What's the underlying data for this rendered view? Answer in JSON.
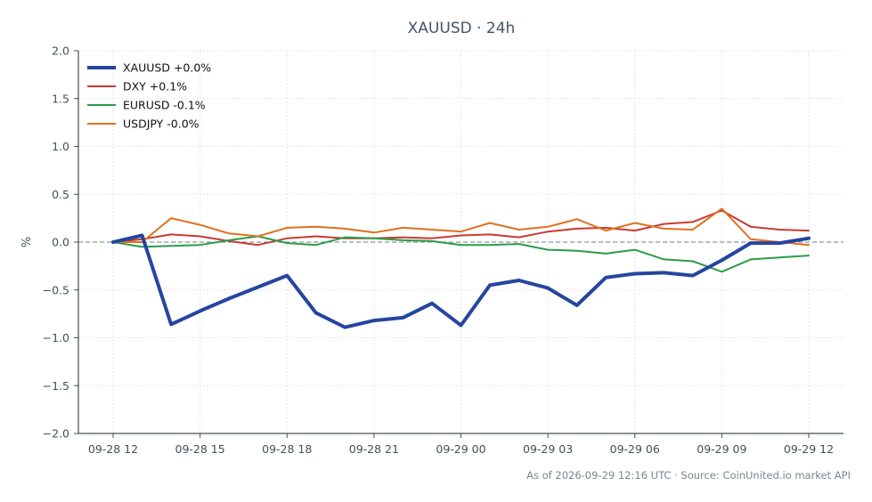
{
  "chart_data": {
    "type": "line",
    "title": "XAUUSD · 24h",
    "xlabel": "",
    "ylabel": "%",
    "ylim": [
      -2.0,
      2.0
    ],
    "yticks": [
      "2.0",
      "1.5",
      "1.0",
      "0.5",
      "0.0",
      "−0.5",
      "−1.0",
      "−1.5",
      "−2.0"
    ],
    "ytick_values": [
      2.0,
      1.5,
      1.0,
      0.5,
      0.0,
      -0.5,
      -1.0,
      -1.5,
      -2.0
    ],
    "xticks": [
      "09-28 12",
      "09-28 15",
      "09-28 18",
      "09-28 21",
      "09-29 00",
      "09-29 03",
      "09-29 06",
      "09-29 09",
      "09-29 12"
    ],
    "x": [
      "09-28 12",
      "09-28 13",
      "09-28 14",
      "09-28 15",
      "09-28 16",
      "09-28 17",
      "09-28 18",
      "09-28 19",
      "09-28 20",
      "09-28 21",
      "09-28 22",
      "09-28 23",
      "09-29 00",
      "09-29 01",
      "09-29 02",
      "09-29 03",
      "09-29 04",
      "09-29 05",
      "09-29 06",
      "09-29 07",
      "09-29 08",
      "09-29 09",
      "09-29 10",
      "09-29 11",
      "09-29 12"
    ],
    "grid": true,
    "zero_line": true,
    "legend_position": "top-left",
    "series": [
      {
        "name": "XAUUSD +0.0%",
        "color": "#2545a0",
        "width": 4,
        "values": [
          0.0,
          0.07,
          -0.86,
          -0.72,
          -0.59,
          -0.47,
          -0.35,
          -0.74,
          -0.89,
          -0.82,
          -0.79,
          -0.64,
          -0.87,
          -0.45,
          -0.4,
          -0.48,
          -0.66,
          -0.37,
          -0.33,
          -0.32,
          -0.35,
          -0.19,
          -0.01,
          -0.01,
          0.04
        ]
      },
      {
        "name": "DXY +0.1%",
        "color": "#c93a32",
        "width": 2,
        "values": [
          0.0,
          0.03,
          0.08,
          0.06,
          0.01,
          -0.03,
          0.04,
          0.06,
          0.04,
          0.04,
          0.05,
          0.04,
          0.07,
          0.08,
          0.05,
          0.11,
          0.14,
          0.15,
          0.12,
          0.19,
          0.21,
          0.33,
          0.16,
          0.13,
          0.12
        ]
      },
      {
        "name": "EURUSD -0.1%",
        "color": "#2a9c4a",
        "width": 2,
        "values": [
          0.0,
          -0.05,
          -0.04,
          -0.03,
          0.02,
          0.06,
          -0.01,
          -0.03,
          0.05,
          0.04,
          0.02,
          0.01,
          -0.03,
          -0.03,
          -0.02,
          -0.08,
          -0.09,
          -0.12,
          -0.08,
          -0.18,
          -0.2,
          -0.31,
          -0.18,
          -0.16,
          -0.14
        ]
      },
      {
        "name": "USDJPY -0.0%",
        "color": "#e07020",
        "width": 2,
        "values": [
          0.0,
          0.0,
          0.25,
          0.18,
          0.09,
          0.06,
          0.15,
          0.16,
          0.14,
          0.1,
          0.15,
          0.13,
          0.11,
          0.2,
          0.13,
          0.16,
          0.24,
          0.12,
          0.2,
          0.14,
          0.13,
          0.35,
          0.03,
          0.0,
          -0.03
        ]
      }
    ]
  },
  "footer": "As of 2026-09-29 12:16 UTC · Source: CoinUnited.io market API",
  "colors": {
    "grid": "#e6e6e6",
    "axis": "#444f5a",
    "zero_line": "#8c96a0"
  }
}
